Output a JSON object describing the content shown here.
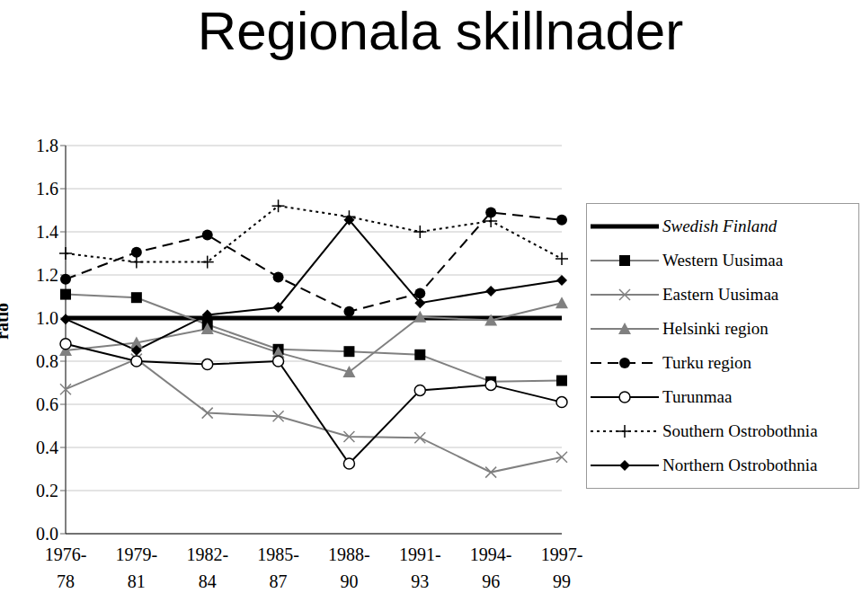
{
  "chart_data": {
    "type": "line",
    "title": "Regionala skillnader",
    "y_label": "ratio",
    "categories": [
      "1976-78",
      "1979-81",
      "1982-84",
      "1985-87",
      "1988-90",
      "1991-93",
      "1994-96",
      "1997-99"
    ],
    "ylim": [
      0,
      1.8
    ],
    "yticks": [
      {
        "value": 0,
        "label": "0.0"
      },
      0.2,
      0.4,
      0.6,
      0.8,
      {
        "value": 1,
        "label": "1.0"
      },
      1.2,
      1.4,
      1.6,
      1.8
    ],
    "grid": true,
    "legend": "right",
    "series": [
      {
        "name": "Swedish Finland",
        "color": "#000000",
        "marker": "none",
        "line_style": "solid",
        "values": [
          1.0,
          1.0,
          1.0,
          1.0,
          1.0,
          1.0,
          1.0,
          1.0
        ]
      },
      {
        "name": "Western Uusimaa",
        "color": "#808080",
        "marker": "square",
        "line_style": "solid",
        "values": [
          1.11,
          1.095,
          0.97,
          0.855,
          0.845,
          0.83,
          0.705,
          0.71
        ]
      },
      {
        "name": "Eastern Uusimaa",
        "color": "#808080",
        "marker": "x",
        "line_style": "solid",
        "values": [
          0.67,
          0.81,
          0.56,
          0.545,
          0.45,
          0.445,
          0.285,
          0.355
        ]
      },
      {
        "name": "Helsinki region",
        "color": "#808080",
        "marker": "triangle",
        "line_style": "solid",
        "values": [
          0.85,
          0.885,
          0.95,
          0.84,
          0.75,
          1.005,
          0.99,
          1.07
        ]
      },
      {
        "name": "Turku region",
        "color": "#000000",
        "marker": "circle",
        "line_style": "dashed",
        "values": [
          1.18,
          1.305,
          1.385,
          1.19,
          1.03,
          1.115,
          1.49,
          1.455
        ]
      },
      {
        "name": "Turunmaa",
        "color": "#000000",
        "marker": "open_circle",
        "line_style": "solid",
        "values": [
          0.88,
          0.8,
          0.785,
          0.8,
          0.325,
          0.665,
          0.69,
          0.61
        ]
      },
      {
        "name": "Southern Ostrobothnia",
        "color": "#000000",
        "marker": "plus",
        "line_style": "dotted",
        "values": [
          1.3,
          1.26,
          1.26,
          1.52,
          1.47,
          1.4,
          1.45,
          1.275
        ]
      },
      {
        "name": "Northern Ostrobothnia",
        "color": "#000000",
        "marker": "diamond",
        "line_style": "solid",
        "values": [
          0.995,
          0.85,
          1.015,
          1.05,
          1.455,
          1.07,
          1.125,
          1.175
        ]
      }
    ]
  }
}
